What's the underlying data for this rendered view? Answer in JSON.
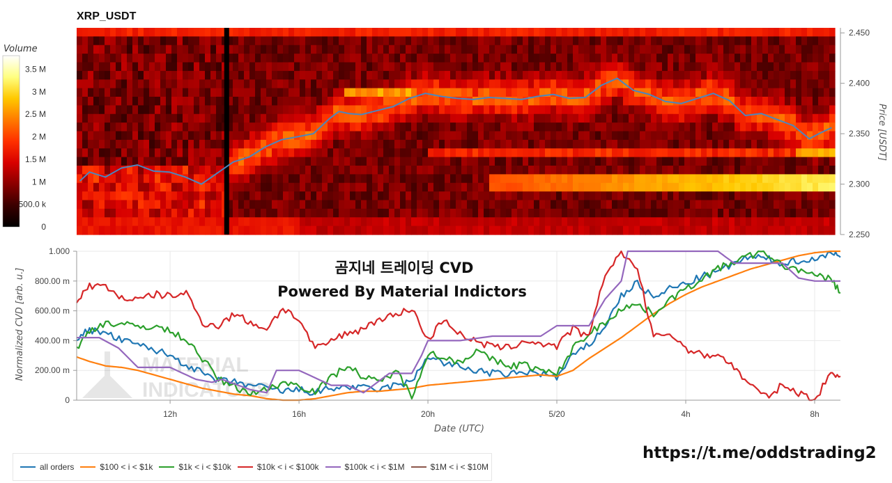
{
  "chart_data": [
    {
      "type": "heatmap",
      "title": "XRP_USDT",
      "ylabel": "Price [USDT]",
      "ylim": [
        2.25,
        2.455
      ],
      "yticks": [
        "2.250",
        "2.300",
        "2.350",
        "2.400",
        "2.450"
      ],
      "colorbar": {
        "title": "Volume",
        "range": [
          0,
          3800000
        ],
        "ticks": [
          "0",
          "500.0 k",
          "1 M",
          "1.5 M",
          "2 M",
          "2.5 M",
          "3 M",
          "3.5 M"
        ],
        "colors": [
          "#000000",
          "#3a0000",
          "#8a0000",
          "#d80000",
          "#ff3000",
          "#ff7a00",
          "#ffc800",
          "#ffff80",
          "#ffffff"
        ]
      },
      "price_line": {
        "color": "#4a86c0",
        "x": [
          9.2,
          9.5,
          10.0,
          10.5,
          11.0,
          11.5,
          12.0,
          12.5,
          13.0,
          13.5,
          14.0,
          14.5,
          15.0,
          15.5,
          16.0,
          16.5,
          17.0,
          17.3,
          17.6,
          18.0,
          18.5,
          19.0,
          19.5,
          20.0,
          20.5,
          21.0,
          21.5,
          22.0,
          22.5,
          23.0,
          23.5,
          24.0,
          24.5,
          25.0,
          25.5,
          26.0,
          26.5,
          27.0,
          27.5,
          28.0,
          28.5,
          29.0,
          29.5,
          30.0,
          30.5,
          31.0,
          31.5,
          32.0,
          32.3,
          32.7
        ],
        "y": [
          2.303,
          2.312,
          2.307,
          2.316,
          2.319,
          2.313,
          2.312,
          2.307,
          2.3,
          2.311,
          2.322,
          2.327,
          2.337,
          2.344,
          2.347,
          2.35,
          2.365,
          2.372,
          2.37,
          2.369,
          2.373,
          2.377,
          2.385,
          2.39,
          2.387,
          2.385,
          2.384,
          2.386,
          2.385,
          2.384,
          2.387,
          2.389,
          2.385,
          2.386,
          2.398,
          2.405,
          2.393,
          2.389,
          2.382,
          2.38,
          2.385,
          2.39,
          2.383,
          2.368,
          2.37,
          2.364,
          2.358,
          2.345,
          2.35,
          2.356
        ]
      },
      "black_column_x": 13.8
    },
    {
      "type": "line",
      "title": "곰지네 트레이딩 CVD",
      "subtitle": "Powered By Material Indictors",
      "xlabel": "Date (UTC)",
      "ylabel": "Normalized CVD [arb. u.]",
      "xlim": [
        9.1,
        32.8
      ],
      "ylim": [
        0,
        1.0
      ],
      "xticks": [
        {
          "x": 12,
          "label": "12h"
        },
        {
          "x": 16,
          "label": "16h"
        },
        {
          "x": 20,
          "label": "20h"
        },
        {
          "x": 24,
          "label": "5/20"
        },
        {
          "x": 28,
          "label": "4h"
        },
        {
          "x": 32,
          "label": "8h"
        }
      ],
      "yticks": [
        {
          "y": 0,
          "label": "0"
        },
        {
          "y": 0.2,
          "label": "200.00 m"
        },
        {
          "y": 0.4,
          "label": "400.00 m"
        },
        {
          "y": 0.6,
          "label": "600.00 m"
        },
        {
          "y": 0.8,
          "label": "800.00 m"
        },
        {
          "y": 1.0,
          "label": "1.000"
        }
      ],
      "watermark": [
        "MATERIAL",
        "INDICATORS"
      ],
      "series": [
        {
          "name": "all orders",
          "color": "#1f77b4",
          "x": [
            9.1,
            9.5,
            10.0,
            10.5,
            11.0,
            11.5,
            12.0,
            12.5,
            13.0,
            13.5,
            14.0,
            14.5,
            15.0,
            15.5,
            16.0,
            16.5,
            17.0,
            17.5,
            18.0,
            18.5,
            19.0,
            19.5,
            20.0,
            20.5,
            21.0,
            21.5,
            22.0,
            22.5,
            23.0,
            23.5,
            24.0,
            24.5,
            25.0,
            25.5,
            26.0,
            26.5,
            27.0,
            27.5,
            28.0,
            28.5,
            29.0,
            29.5,
            30.0,
            30.5,
            31.0,
            31.5,
            32.0,
            32.5,
            32.8
          ],
          "y": [
            0.42,
            0.47,
            0.45,
            0.4,
            0.37,
            0.34,
            0.3,
            0.24,
            0.18,
            0.13,
            0.12,
            0.1,
            0.08,
            0.06,
            0.07,
            0.05,
            0.08,
            0.09,
            0.08,
            0.07,
            0.1,
            0.12,
            0.3,
            0.25,
            0.22,
            0.2,
            0.18,
            0.17,
            0.19,
            0.18,
            0.15,
            0.3,
            0.37,
            0.5,
            0.7,
            0.79,
            0.68,
            0.75,
            0.78,
            0.83,
            0.86,
            0.92,
            0.96,
            0.95,
            0.92,
            0.94,
            0.94,
            1.0,
            0.96
          ]
        },
        {
          "name": "$100 < i < $1k",
          "color": "#ff7f0e",
          "x": [
            9.1,
            9.5,
            10.0,
            10.5,
            11.0,
            11.5,
            12.0,
            12.5,
            13.0,
            13.5,
            14.0,
            14.5,
            15.0,
            15.5,
            16.0,
            16.5,
            17.0,
            17.5,
            18.0,
            18.5,
            19.0,
            19.5,
            20.0,
            20.5,
            21.0,
            21.5,
            22.0,
            22.5,
            23.0,
            23.5,
            24.0,
            24.5,
            25.0,
            25.5,
            26.0,
            26.5,
            27.0,
            27.5,
            28.0,
            28.5,
            29.0,
            29.5,
            30.0,
            30.5,
            31.0,
            31.5,
            32.0,
            32.5,
            32.8
          ],
          "y": [
            0.29,
            0.26,
            0.23,
            0.22,
            0.2,
            0.17,
            0.14,
            0.11,
            0.08,
            0.06,
            0.04,
            0.03,
            0.01,
            0.0,
            0.0,
            0.01,
            0.03,
            0.05,
            0.06,
            0.06,
            0.07,
            0.08,
            0.1,
            0.11,
            0.12,
            0.13,
            0.14,
            0.15,
            0.16,
            0.17,
            0.16,
            0.2,
            0.28,
            0.35,
            0.42,
            0.5,
            0.58,
            0.65,
            0.71,
            0.76,
            0.8,
            0.84,
            0.88,
            0.91,
            0.94,
            0.97,
            0.99,
            1.0,
            1.0
          ]
        },
        {
          "name": "$1k < i < $10k",
          "color": "#2ca02c",
          "x": [
            9.1,
            9.5,
            10.0,
            10.5,
            11.0,
            11.5,
            12.0,
            12.5,
            13.0,
            13.5,
            14.0,
            14.5,
            15.0,
            15.5,
            16.0,
            16.5,
            17.0,
            17.5,
            18.0,
            18.5,
            19.0,
            19.5,
            20.0,
            20.5,
            21.0,
            21.5,
            22.0,
            22.5,
            23.0,
            23.5,
            24.0,
            24.5,
            25.0,
            25.5,
            26.0,
            26.5,
            27.0,
            27.5,
            28.0,
            28.5,
            29.0,
            29.5,
            30.0,
            30.5,
            31.0,
            31.5,
            32.0,
            32.5,
            32.8
          ],
          "y": [
            0.34,
            0.47,
            0.52,
            0.51,
            0.49,
            0.5,
            0.46,
            0.41,
            0.28,
            0.14,
            0.09,
            0.05,
            0.07,
            0.12,
            0.1,
            0.06,
            0.15,
            0.24,
            0.15,
            0.12,
            0.2,
            0.03,
            0.32,
            0.28,
            0.26,
            0.33,
            0.27,
            0.23,
            0.24,
            0.2,
            0.17,
            0.35,
            0.45,
            0.52,
            0.62,
            0.64,
            0.58,
            0.68,
            0.74,
            0.82,
            0.88,
            0.93,
            0.97,
            0.99,
            0.9,
            0.88,
            0.83,
            0.82,
            0.72
          ]
        },
        {
          "name": "$10k < i < $100k",
          "color": "#d62728",
          "x": [
            9.1,
            9.5,
            10.0,
            10.5,
            11.0,
            11.5,
            12.0,
            12.5,
            13.0,
            13.5,
            14.0,
            14.5,
            15.0,
            15.5,
            16.0,
            16.5,
            17.0,
            17.5,
            18.0,
            18.5,
            19.0,
            19.5,
            20.0,
            20.5,
            21.0,
            21.5,
            22.0,
            22.5,
            23.0,
            23.5,
            24.0,
            24.5,
            25.0,
            25.5,
            26.0,
            26.5,
            27.0,
            27.5,
            28.0,
            28.5,
            29.0,
            29.5,
            30.0,
            30.5,
            31.0,
            31.5,
            32.0,
            32.5,
            32.8
          ],
          "y": [
            0.66,
            0.77,
            0.76,
            0.69,
            0.67,
            0.71,
            0.7,
            0.72,
            0.52,
            0.5,
            0.58,
            0.52,
            0.48,
            0.62,
            0.54,
            0.34,
            0.4,
            0.45,
            0.48,
            0.55,
            0.57,
            0.62,
            0.4,
            0.55,
            0.44,
            0.39,
            0.36,
            0.35,
            0.4,
            0.38,
            0.36,
            0.48,
            0.42,
            0.85,
            1.0,
            0.88,
            0.42,
            0.45,
            0.35,
            0.3,
            0.31,
            0.22,
            0.1,
            0.02,
            0.1,
            0.05,
            0.0,
            0.18,
            0.16
          ]
        },
        {
          "name": "$100k < i < $1M",
          "color": "#9467bd",
          "x": [
            9.1,
            9.8,
            10.4,
            11.0,
            12.0,
            12.8,
            13.3,
            13.6,
            14.5,
            15.0,
            15.3,
            16.0,
            16.5,
            17.0,
            17.5,
            18.0,
            18.8,
            19.5,
            19.8,
            20.0,
            21.0,
            22.0,
            23.0,
            23.5,
            24.0,
            24.5,
            25.0,
            25.5,
            26.0,
            26.2,
            27.0,
            28.0,
            29.0,
            29.5,
            30.0,
            30.5,
            31.0,
            31.5,
            32.0,
            32.5,
            32.8
          ],
          "y": [
            0.42,
            0.42,
            0.35,
            0.22,
            0.22,
            0.14,
            0.12,
            0.14,
            0.07,
            0.05,
            0.2,
            0.2,
            0.15,
            0.1,
            0.1,
            0.05,
            0.18,
            0.18,
            0.3,
            0.4,
            0.4,
            0.43,
            0.43,
            0.43,
            0.5,
            0.5,
            0.5,
            0.68,
            0.8,
            1.0,
            1.0,
            1.0,
            1.0,
            0.92,
            0.92,
            0.92,
            0.92,
            0.82,
            0.8,
            0.8,
            0.8
          ]
        },
        {
          "name": "$1M < i < $10M",
          "color": "#8c564b",
          "x": [],
          "y": []
        }
      ]
    }
  ],
  "footer_link": "https://t.me/oddstrading2"
}
